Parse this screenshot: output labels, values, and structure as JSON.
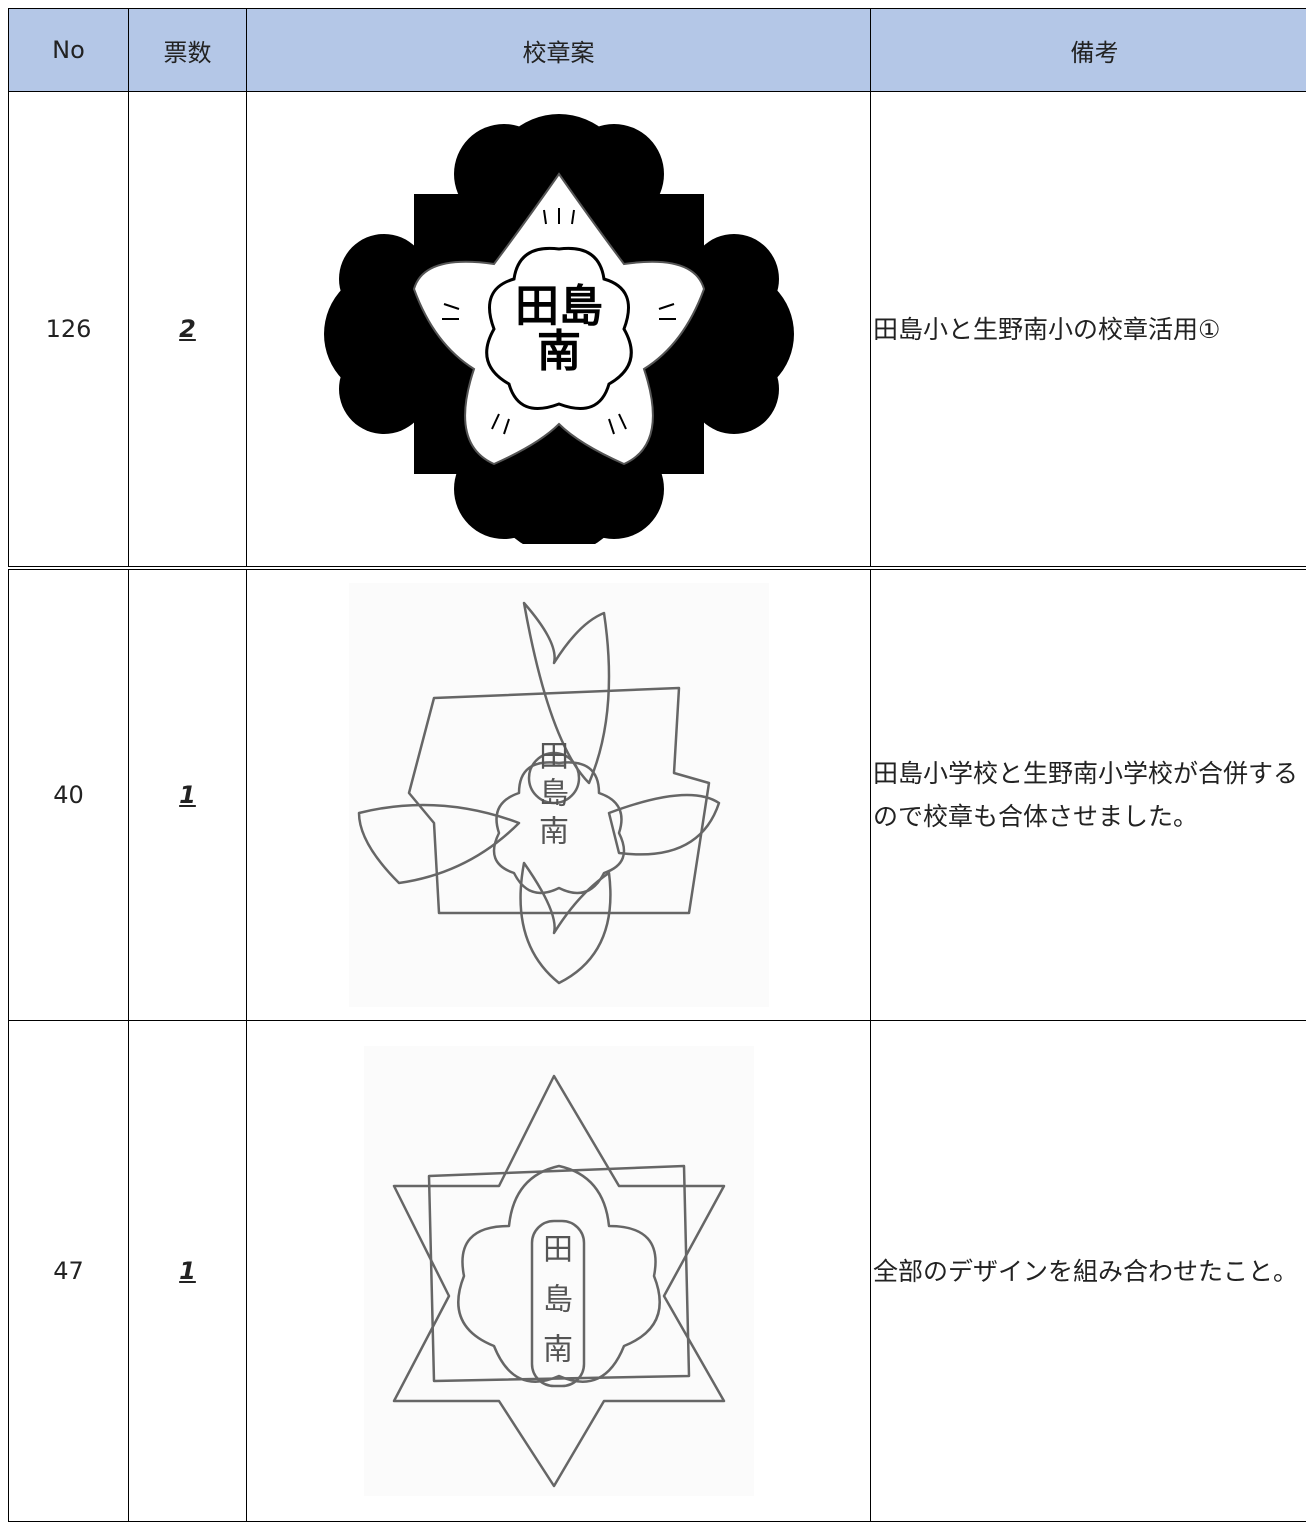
{
  "table": {
    "header": [
      "No",
      "票数",
      "校章案",
      "備考"
    ],
    "rows": [
      {
        "no": "126",
        "votes": "2",
        "emblem_text": [
          "田島",
          "南"
        ],
        "note": "田島小と生野南小の校章活用①"
      },
      {
        "no": "40",
        "votes": "1",
        "emblem_text": [
          "田",
          "島",
          "南"
        ],
        "note": "田島小学校と生野南小学校が合併するので校章も合体させました。"
      },
      {
        "no": "47",
        "votes": "1",
        "emblem_text": [
          "田",
          "島",
          "南"
        ],
        "note": "全部のデザインを組み合わせたこと。"
      }
    ]
  }
}
